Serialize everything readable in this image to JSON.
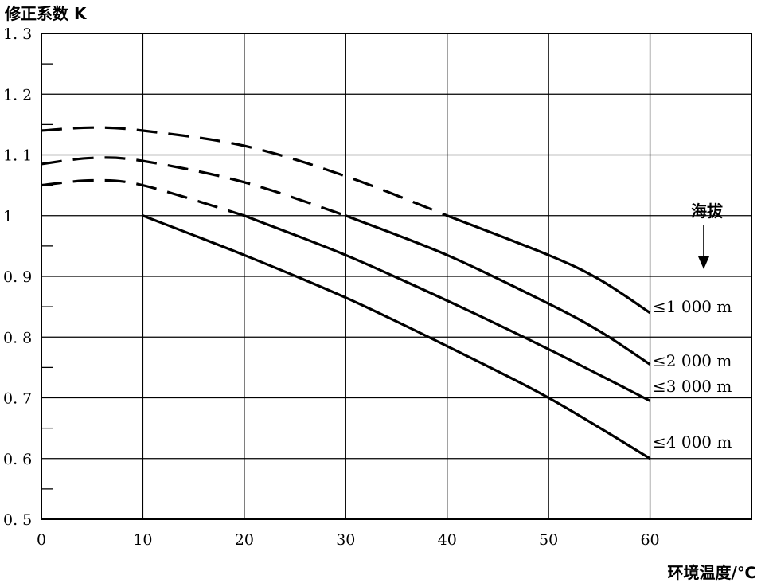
{
  "chart_data": {
    "type": "line",
    "ylabel": "修正系数 K",
    "xlabel": "环境温度/℃",
    "legend_title": "海拔",
    "xlim": [
      0,
      70
    ],
    "ylim": [
      0.5,
      1.3
    ],
    "x_ticks": [
      0,
      10,
      20,
      30,
      40,
      50,
      60
    ],
    "x_tick_labels": [
      "0",
      "10",
      "20",
      "30",
      "40",
      "50",
      "60"
    ],
    "y_ticks": [
      0.5,
      0.6,
      0.7,
      0.8,
      0.9,
      1.0,
      1.1,
      1.2,
      1.3
    ],
    "y_tick_labels": [
      "0. 5",
      "0. 6",
      "0. 7",
      "0. 8",
      "0. 9",
      "1",
      "1. 1",
      "1. 2",
      "1. 3"
    ],
    "grid": true,
    "series": [
      {
        "name": "≤1 000 m",
        "dashed": [
          [
            0,
            1.14
          ],
          [
            5,
            1.145
          ],
          [
            10,
            1.14
          ],
          [
            20,
            1.115
          ],
          [
            30,
            1.065
          ],
          [
            40,
            1.0
          ]
        ],
        "solid": [
          [
            40,
            1.0
          ],
          [
            50,
            0.935
          ],
          [
            55,
            0.895
          ],
          [
            60,
            0.84
          ]
        ]
      },
      {
        "name": "≤2 000 m",
        "dashed": [
          [
            0,
            1.085
          ],
          [
            5,
            1.095
          ],
          [
            10,
            1.09
          ],
          [
            20,
            1.055
          ],
          [
            30,
            1.0
          ]
        ],
        "solid": [
          [
            30,
            1.0
          ],
          [
            40,
            0.935
          ],
          [
            50,
            0.855
          ],
          [
            55,
            0.81
          ],
          [
            60,
            0.755
          ]
        ]
      },
      {
        "name": "≤3 000 m",
        "dashed": [
          [
            0,
            1.05
          ],
          [
            5,
            1.058
          ],
          [
            10,
            1.05
          ],
          [
            20,
            1.0
          ]
        ],
        "solid": [
          [
            20,
            1.0
          ],
          [
            30,
            0.935
          ],
          [
            40,
            0.86
          ],
          [
            50,
            0.78
          ],
          [
            60,
            0.695
          ]
        ]
      },
      {
        "name": "≤4 000 m",
        "dashed": [],
        "solid": [
          [
            10,
            1.0
          ],
          [
            20,
            0.935
          ],
          [
            30,
            0.865
          ],
          [
            40,
            0.785
          ],
          [
            50,
            0.7
          ],
          [
            60,
            0.6
          ]
        ]
      }
    ]
  }
}
